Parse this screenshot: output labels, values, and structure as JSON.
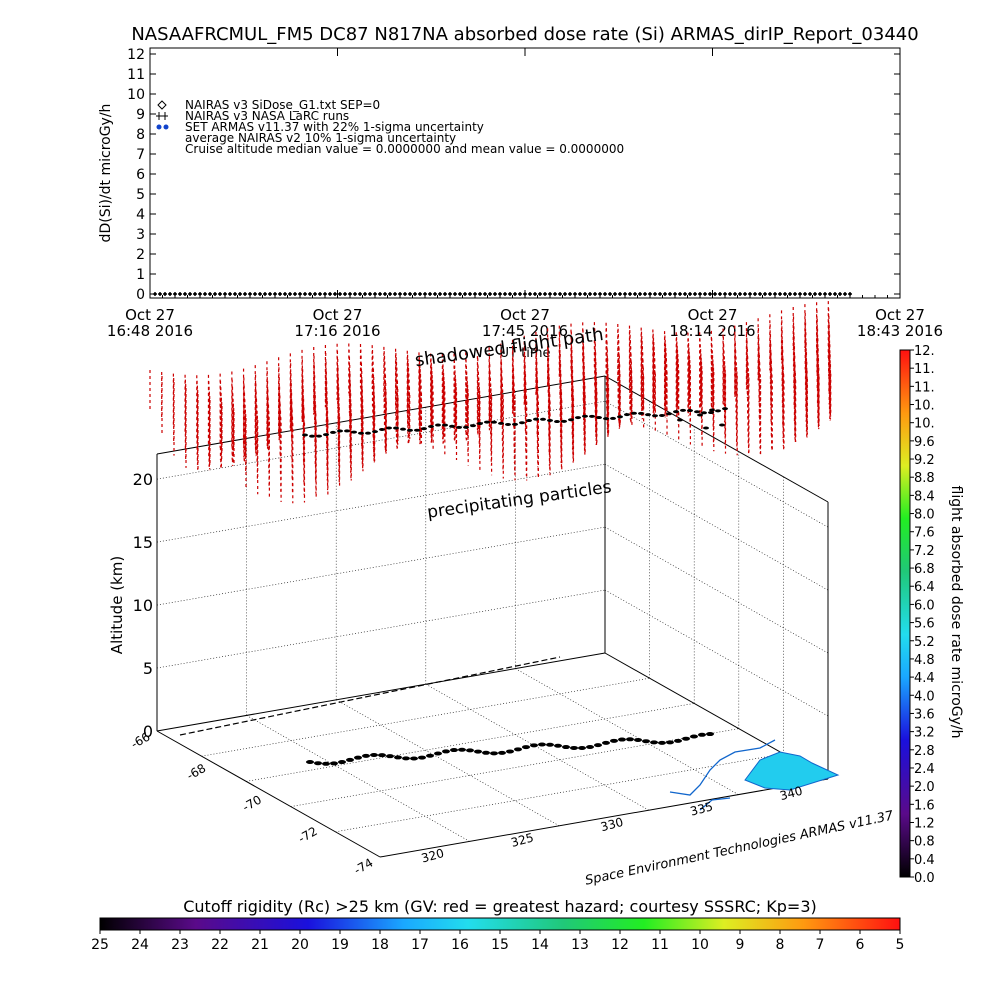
{
  "title": "NASAAFRCMUL_FM5 DC87 N817NA absorbed dose rate (Si) ARMAS_dirIP_Report_03440",
  "colors": {
    "foreground": "#000000",
    "background": "#ffffff",
    "precip": "#cc0000",
    "ocean": "#22ccee",
    "coast": "#1166cc"
  },
  "chart_data": [
    {
      "type": "scatter",
      "ylabel": "dD(Si)/dt microGy/h",
      "xlabel": "UT time",
      "ylim": [
        0,
        12
      ],
      "y_ticks": [
        "0",
        "1",
        "2",
        "3",
        "4",
        "5",
        "6",
        "7",
        "8",
        "9",
        "10",
        "11",
        "12"
      ],
      "x_ticks": [
        {
          "l1": "Oct 27",
          "l2": "16:48 2016"
        },
        {
          "l1": "Oct 27",
          "l2": "17:16 2016"
        },
        {
          "l1": "Oct 27",
          "l2": "17:45 2016"
        },
        {
          "l1": "Oct 27",
          "l2": "18:14 2016"
        },
        {
          "l1": "Oct 27",
          "l2": "18:43 2016"
        }
      ],
      "legend": [
        {
          "symbol": "diamond",
          "text": "NAIRAS v3 SiDose_G1.txt SEP=0"
        },
        {
          "symbol": "plus",
          "text": "NAIRAS v3 NASA LaRC runs"
        },
        {
          "symbol": "dot",
          "text": "SET ARMAS v11.37 with 22% 1-sigma uncertainty"
        },
        {
          "symbol": "none",
          "text": "average NAIRAS v2 10% 1-sigma uncertainty"
        },
        {
          "symbol": "none",
          "text": "Cruise altitude median value = 0.0000000 and mean value = 0.0000000"
        }
      ],
      "legend_placement": "top-left",
      "series": [
        {
          "x_range": [
            "Oct 27 16:48 2016",
            "Oct 27 18:35 2016"
          ],
          "y": 0.0
        }
      ]
    },
    {
      "type": "scatter",
      "ylabel": "Altitude (km)",
      "z_ticks": [
        "0",
        "5",
        "10",
        "15",
        "20"
      ],
      "zlim": [
        0,
        22
      ],
      "lat_ticks": [
        "-66",
        "-68",
        "-70",
        "-72",
        "-74"
      ],
      "lon_ticks": [
        "320",
        "325",
        "330",
        "335",
        "340"
      ],
      "annotations": [
        "shadowed flight path",
        "precipitating particles"
      ],
      "credit": "Space Environment Technologies ARMAS v11.37"
    },
    {
      "type": "heatmap",
      "colorbar_label": "flight absorbed dose rate microGy/h",
      "colorbar_ticks": [
        "0.0",
        "0.4",
        "0.8",
        "1.2",
        "1.6",
        "2.0",
        "2.4",
        "2.8",
        "3.2",
        "3.6",
        "4.0",
        "4.4",
        "4.8",
        "5.2",
        "5.6",
        "6.0",
        "6.4",
        "6.8",
        "7.2",
        "7.6",
        "8.0",
        "8.4",
        "8.8",
        "9.2",
        "9.6",
        "10.",
        "10.",
        "11.",
        "11.",
        "12."
      ]
    },
    {
      "type": "heatmap",
      "colorbar_label": "Cutoff rigidity (Rc) >25 km (GV: red = greatest hazard; courtesy SSSRC; Kp=3)",
      "colorbar_ticks": [
        "25",
        "24",
        "23",
        "22",
        "21",
        "20",
        "19",
        "18",
        "17",
        "16",
        "15",
        "14",
        "13",
        "12",
        "11",
        "10",
        "9",
        "8",
        "7",
        "6",
        "5"
      ]
    }
  ]
}
